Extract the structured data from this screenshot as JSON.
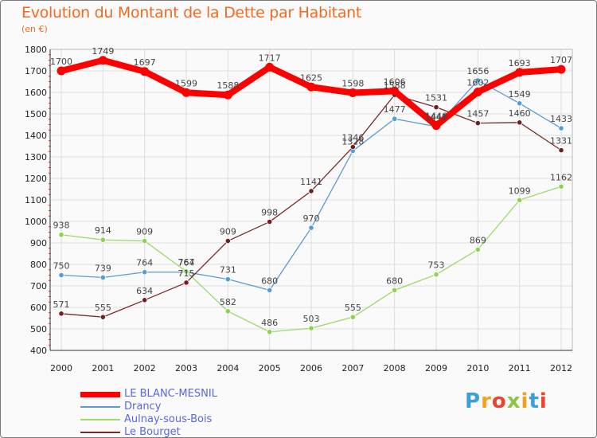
{
  "title": "Evolution du Montant de la Dette par Habitant",
  "subtitle": "(en €)",
  "logo": "Proxiti",
  "colors": {
    "title": "#f26a22",
    "grid": "#dddddd",
    "legend_text": "#5b67e2"
  },
  "chart_data": {
    "type": "line",
    "title": "Evolution du Montant de la Dette par Habitant",
    "ylabel": "(en €)",
    "xlabel": "",
    "x": [
      "2000",
      "2001",
      "2002",
      "2003",
      "2004",
      "2005",
      "2006",
      "2007",
      "2008",
      "2009",
      "2010",
      "2011",
      "2012"
    ],
    "ylim": [
      400,
      1800
    ],
    "yticks": [
      400,
      500,
      600,
      700,
      800,
      900,
      1000,
      1100,
      1200,
      1300,
      1400,
      1500,
      1600,
      1700,
      1800
    ],
    "grid": true,
    "legend_position": "bottom-left",
    "series": [
      {
        "name": "LE BLANC-MESNIL",
        "color": "#ff0000",
        "emphasis": true,
        "values": [
          1700,
          1749,
          1697,
          1599,
          1588,
          1717,
          1625,
          1598,
          1606,
          1446,
          1602,
          1693,
          1707
        ],
        "labels": [
          "1700",
          "1749",
          "1697",
          "1599",
          "1588",
          "1717",
          "1625",
          "1598",
          "1606",
          "1446",
          "1602",
          "1693",
          "1707"
        ]
      },
      {
        "name": "Drancy",
        "color": "#5b9bd5",
        "marker": "#4f9fd8",
        "values": [
          750,
          739,
          764,
          764,
          731,
          680,
          970,
          1328,
          1477,
          1441,
          1656,
          1549,
          1433
        ],
        "labels": [
          "750",
          "739",
          "764",
          "764",
          "731",
          "680",
          "970",
          "1328",
          "1477",
          "1441",
          "1656",
          "1549",
          "1433"
        ]
      },
      {
        "name": "Aulnay-sous-Bois",
        "color": "#9bdb6a",
        "marker": "#8ad451",
        "values": [
          938,
          914,
          909,
          767,
          582,
          486,
          503,
          555,
          680,
          753,
          869,
          1099,
          1162
        ],
        "labels": [
          "938",
          "914",
          "909",
          "767",
          "582",
          "486",
          "503",
          "555",
          "680",
          "753",
          "869",
          "1099",
          "1162"
        ]
      },
      {
        "name": "Le Bourget",
        "color": "#7a2b2b",
        "marker": "#6e1f1f",
        "values": [
          571,
          555,
          634,
          715,
          909,
          998,
          1141,
          1346,
          1588,
          1531,
          1457,
          1460,
          1331
        ],
        "labels": [
          "571",
          "555",
          "634",
          "715",
          "909",
          "998",
          "1141",
          "1346",
          "1588",
          "1531",
          "1457",
          "1460",
          "1331"
        ]
      }
    ]
  }
}
